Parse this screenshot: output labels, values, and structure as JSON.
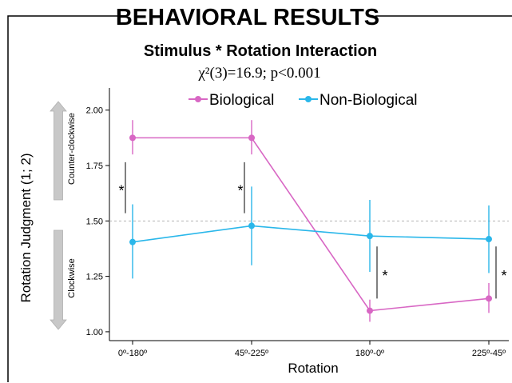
{
  "header": {
    "banner_title": "BEHAVIORAL RESULTS",
    "chart_title": "Stimulus * Rotation Interaction",
    "statistic": "χ²(3)=16.9; p<0.001"
  },
  "direction_labels": {
    "up": "Counter-clockwise",
    "down": "Clockwise"
  },
  "colors": {
    "biological": "#d867c4",
    "non_biological": "#2ab7ea",
    "reference_line": "#b3b3b3"
  },
  "chart_data": {
    "type": "line",
    "xlabel": "Rotation",
    "ylabel": "Rotation Judgment (1; 2)",
    "categories": [
      "0º-180º",
      "45º-225º",
      "180º-0º",
      "225º-45º"
    ],
    "ylim": [
      0.96,
      2.1
    ],
    "yticks": [
      1.0,
      1.25,
      1.5,
      1.75,
      2.0
    ],
    "ytick_labels": [
      "1.00",
      "1.25",
      "1.50",
      "1.75",
      "2.00"
    ],
    "reference_line": 1.5,
    "grid": false,
    "legend_position": "top",
    "series": [
      {
        "name": "Biological",
        "color": "#d867c4",
        "values": [
          1.875,
          1.875,
          1.095,
          1.15
        ],
        "ci_low": [
          1.8,
          1.8,
          1.045,
          1.085
        ],
        "ci_high": [
          1.955,
          1.955,
          1.145,
          1.22
        ]
      },
      {
        "name": "Non-Biological",
        "color": "#2ab7ea",
        "values": [
          1.405,
          1.478,
          1.432,
          1.418
        ],
        "ci_low": [
          1.24,
          1.3,
          1.27,
          1.265
        ],
        "ci_high": [
          1.575,
          1.655,
          1.595,
          1.57
        ]
      }
    ],
    "significance": [
      {
        "category": "0º-180º",
        "label": "*",
        "from": 1.535,
        "to": 1.765,
        "side": "left"
      },
      {
        "category": "45º-225º",
        "label": "*",
        "from": 1.535,
        "to": 1.765,
        "side": "left"
      },
      {
        "category": "180º-0º",
        "label": "*",
        "from": 1.15,
        "to": 1.385,
        "side": "right"
      },
      {
        "category": "225º-45º",
        "label": "*",
        "from": 1.15,
        "to": 1.385,
        "side": "right"
      }
    ]
  }
}
